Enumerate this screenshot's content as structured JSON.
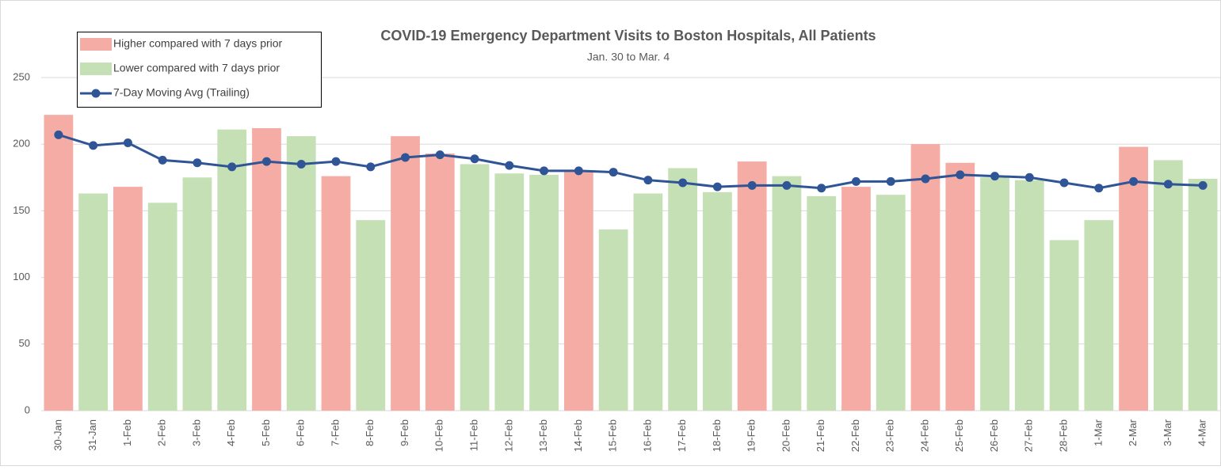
{
  "chart_data": {
    "type": "bar",
    "title": "COVID-19 Emergency Department Visits to Boston Hospitals, All Patients",
    "subtitle": "Jan. 30 to Mar. 4",
    "categories": [
      "30-Jan",
      "31-Jan",
      "1-Feb",
      "2-Feb",
      "3-Feb",
      "4-Feb",
      "5-Feb",
      "6-Feb",
      "7-Feb",
      "8-Feb",
      "9-Feb",
      "10-Feb",
      "11-Feb",
      "12-Feb",
      "13-Feb",
      "14-Feb",
      "15-Feb",
      "16-Feb",
      "17-Feb",
      "18-Feb",
      "19-Feb",
      "20-Feb",
      "21-Feb",
      "22-Feb",
      "23-Feb",
      "24-Feb",
      "25-Feb",
      "26-Feb",
      "27-Feb",
      "28-Feb",
      "1-Mar",
      "2-Mar",
      "3-Mar",
      "4-Mar"
    ],
    "series": [
      {
        "name": "Higher compared with 7 days prior",
        "type": "bar",
        "color": "#f4aca5",
        "values": [
          222,
          null,
          168,
          null,
          null,
          null,
          212,
          null,
          176,
          null,
          206,
          193,
          null,
          null,
          null,
          180,
          null,
          null,
          null,
          null,
          187,
          null,
          null,
          168,
          null,
          200,
          186,
          null,
          null,
          null,
          null,
          198,
          null,
          null
        ]
      },
      {
        "name": "Lower compared with 7 days prior",
        "type": "bar",
        "color": "#c5e0b4",
        "values": [
          null,
          163,
          null,
          156,
          175,
          211,
          null,
          206,
          null,
          143,
          null,
          null,
          185,
          178,
          177,
          null,
          136,
          163,
          182,
          164,
          null,
          176,
          161,
          null,
          162,
          null,
          null,
          175,
          173,
          128,
          143,
          null,
          188,
          174
        ]
      },
      {
        "name": "7-Day Moving Avg (Trailing)",
        "type": "line",
        "color": "#2f5597",
        "values": [
          207,
          199,
          201,
          188,
          186,
          183,
          187,
          185,
          187,
          183,
          190,
          192,
          189,
          184,
          180,
          180,
          179,
          173,
          171,
          168,
          169,
          169,
          167,
          172,
          172,
          174,
          177,
          176,
          175,
          171,
          167,
          172,
          170,
          169
        ]
      }
    ],
    "ylim": [
      0,
      250
    ],
    "yticks": [
      0,
      50,
      100,
      150,
      200,
      250
    ],
    "grid": true
  }
}
